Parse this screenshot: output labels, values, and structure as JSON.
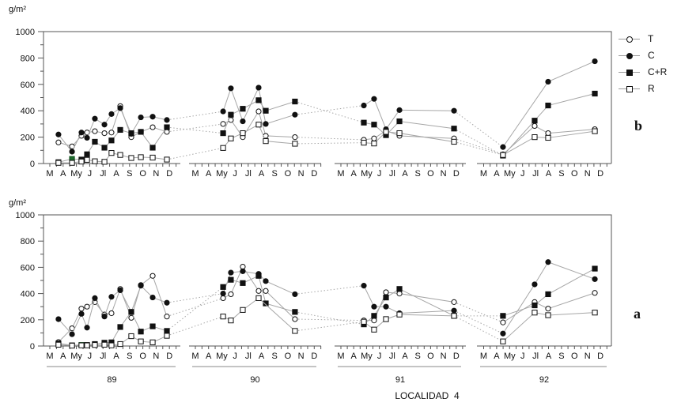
{
  "colors": {
    "background": "#ffffff",
    "axis": "#555555",
    "line": "#a6a6a6",
    "marker": "#111111",
    "green_marker": "#1e6b2e",
    "text": "#111111"
  },
  "chart_data": {
    "type": "line",
    "title": "LOCALIDAD  4",
    "ylabel": "g/m²",
    "ylim": [
      0,
      1000
    ],
    "yticks": [
      0,
      200,
      400,
      600,
      800,
      1000
    ],
    "y_minor_step": 100,
    "grid": "off",
    "legend_position": "top-right",
    "months": [
      "M",
      "A",
      "My",
      "J",
      "Jl",
      "A",
      "S",
      "O",
      "N",
      "D"
    ],
    "years": [
      "89",
      "90",
      "91",
      "92"
    ],
    "series_meta": [
      {
        "name": "T",
        "marker": "circle-open"
      },
      {
        "name": "C",
        "marker": "circle-filled"
      },
      {
        "name": "C+R",
        "marker": "square-filled"
      },
      {
        "name": "R",
        "marker": "square-open"
      }
    ],
    "panels": [
      {
        "label": "b",
        "position": "top",
        "years": [
          {
            "year": "89",
            "x": [
              0.65,
              1.67,
              2.38,
              2.8,
              3.39,
              4.11,
              4.64,
              5.3,
              6.13,
              6.85,
              7.74,
              8.81
            ],
            "series": {
              "T": [
                160,
                130,
                210,
                235,
                245,
                230,
                235,
                435,
                200,
                240,
                275,
                240
              ],
              "C": [
                220,
                90,
                235,
                195,
                340,
                295,
                375,
                420,
                225,
                350,
                355,
                330
              ],
              "C+R": [
                10,
                35,
                30,
                70,
                165,
                120,
                175,
                255,
                230,
                240,
                120,
                275
              ],
              "R": [
                5,
                5,
                15,
                28,
                17,
                13,
                80,
                65,
                42,
                48,
                45,
                30
              ]
            }
          },
          {
            "year": "90",
            "x": [
              2.1,
              2.69,
              3.59,
              4.79,
              5.33,
              7.54
            ],
            "series": {
              "T": [
                300,
                330,
                200,
                395,
                210,
                200
              ],
              "C": [
                395,
                570,
                320,
                575,
                300,
                370
              ],
              "C+R": [
                230,
                370,
                415,
                480,
                400,
                470
              ],
              "R": [
                118,
                190,
                230,
                295,
                170,
                150
              ]
            }
          },
          {
            "year": "91",
            "x": [
              1.79,
              2.59,
              3.52,
              4.57,
              8.83
            ],
            "series": {
              "T": [
                180,
                190,
                250,
                210,
                190
              ],
              "C": [
                440,
                490,
                260,
                405,
                400
              ],
              "C+R": [
                310,
                295,
                215,
                320,
                265
              ],
              "R": [
                158,
                152,
                240,
                230,
                165
              ]
            }
          },
          {
            "year": "92",
            "x": [
              1.49,
              3.93,
              4.97,
              8.57
            ],
            "series": {
              "T": [
                70,
                285,
                230,
                260
              ],
              "C": [
                125,
                null,
                620,
                775
              ],
              "C+R": [
                60,
                325,
                440,
                530
              ],
              "R": [
                65,
                200,
                195,
                245
              ]
            }
          }
        ]
      },
      {
        "label": "a",
        "position": "bottom",
        "years": [
          {
            "year": "89",
            "x": [
              0.65,
              1.67,
              2.38,
              2.8,
              3.39,
              4.11,
              4.64,
              5.3,
              6.13,
              6.85,
              7.74,
              8.81
            ],
            "series": {
              "T": [
                30,
                135,
                285,
                300,
                335,
                240,
                250,
                435,
                215,
                465,
                535,
                225
              ],
              "C": [
                205,
                90,
                245,
                140,
                365,
                225,
                375,
                425,
                260,
                460,
                370,
                330
              ],
              "C+R": [
                20,
                5,
                8,
                8,
                15,
                25,
                28,
                145,
                260,
                110,
                150,
                115
              ],
              "R": [
                10,
                3,
                5,
                5,
                8,
                10,
                5,
                15,
                75,
                35,
                28,
                78
              ]
            }
          },
          {
            "year": "90",
            "x": [
              2.1,
              2.69,
              3.59,
              4.79,
              5.33,
              7.54
            ],
            "series": {
              "T": [
                365,
                395,
                605,
                420,
                420,
                205
              ],
              "C": [
                400,
                560,
                570,
                550,
                495,
                395
              ],
              "C+R": [
                450,
                505,
                480,
                535,
                325,
                260
              ],
              "R": [
                225,
                195,
                275,
                365,
                null,
                115
              ]
            }
          },
          {
            "year": "91",
            "x": [
              1.79,
              2.59,
              3.52,
              4.57,
              8.83
            ],
            "series": {
              "T": [
                195,
                195,
                410,
                400,
                335
              ],
              "C": [
                460,
                300,
                300,
                250,
                270
              ],
              "C+R": [
                165,
                230,
                370,
                435,
                230
              ],
              "R": [
                185,
                125,
                205,
                240,
                230
              ]
            }
          },
          {
            "year": "92",
            "x": [
              1.49,
              3.93,
              4.97,
              8.57
            ],
            "series": {
              "T": [
                180,
                335,
                285,
                405
              ],
              "C": [
                95,
                470,
                640,
                510
              ],
              "C+R": [
                230,
                310,
                395,
                590
              ],
              "R": [
                35,
                255,
                235,
                255
              ]
            }
          }
        ]
      }
    ],
    "green_markers": [
      {
        "panel": "b",
        "year": "89",
        "series": "C+R",
        "index": 1
      },
      {
        "panel": "a",
        "year": "89",
        "series": "C+R",
        "index": 2
      }
    ]
  }
}
